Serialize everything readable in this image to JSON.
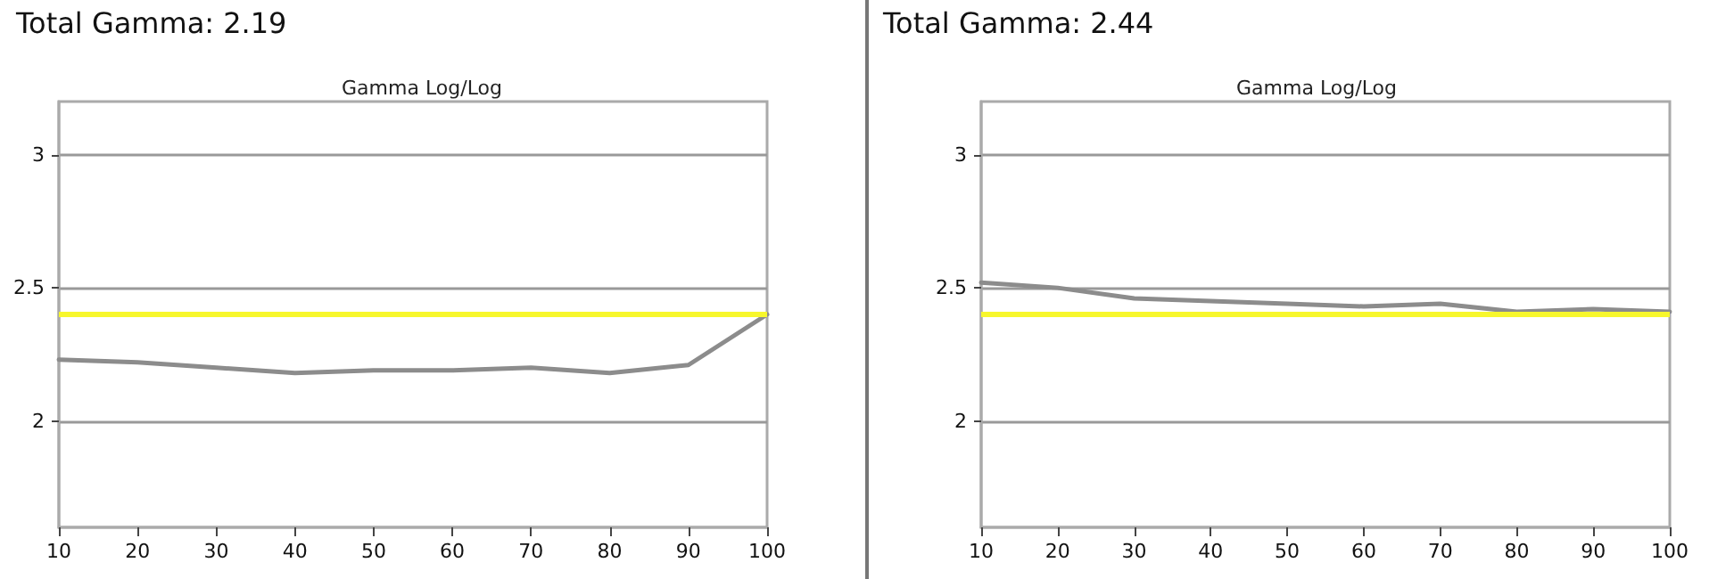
{
  "chart_data": [
    {
      "type": "line",
      "title": "Total Gamma: 2.19",
      "subtitle": "Gamma Log/Log",
      "x": [
        10,
        20,
        30,
        40,
        50,
        60,
        70,
        80,
        90,
        100
      ],
      "series": [
        {
          "color": "#8c8c8c",
          "values": [
            2.23,
            2.22,
            2.2,
            2.18,
            2.19,
            2.19,
            2.2,
            2.18,
            2.21,
            2.4
          ]
        }
      ],
      "xlim": [
        10,
        100
      ],
      "xticks": [
        10,
        20,
        30,
        40,
        50,
        60,
        70,
        80,
        90,
        100
      ],
      "ylim": [
        1.6,
        3.2
      ],
      "yticks": [
        2,
        2.5,
        3
      ],
      "grid": "y",
      "marker": "none",
      "ref_lines": [
        {
          "axis": "y",
          "value": 2.4,
          "color": "#f7f72c"
        }
      ]
    },
    {
      "type": "line",
      "title": "Total Gamma: 2.44",
      "subtitle": "Gamma Log/Log",
      "x": [
        10,
        20,
        30,
        40,
        50,
        60,
        70,
        80,
        90,
        100
      ],
      "series": [
        {
          "color": "#8c8c8c",
          "values": [
            2.52,
            2.5,
            2.46,
            2.45,
            2.44,
            2.43,
            2.44,
            2.41,
            2.42,
            2.41
          ]
        }
      ],
      "xlim": [
        10,
        100
      ],
      "xticks": [
        10,
        20,
        30,
        40,
        50,
        60,
        70,
        80,
        90,
        100
      ],
      "ylim": [
        1.6,
        3.2
      ],
      "yticks": [
        2,
        2.5,
        3
      ],
      "grid": "y",
      "marker": "none",
      "ref_lines": [
        {
          "axis": "y",
          "value": 2.4,
          "color": "#f7f72c"
        }
      ]
    }
  ]
}
